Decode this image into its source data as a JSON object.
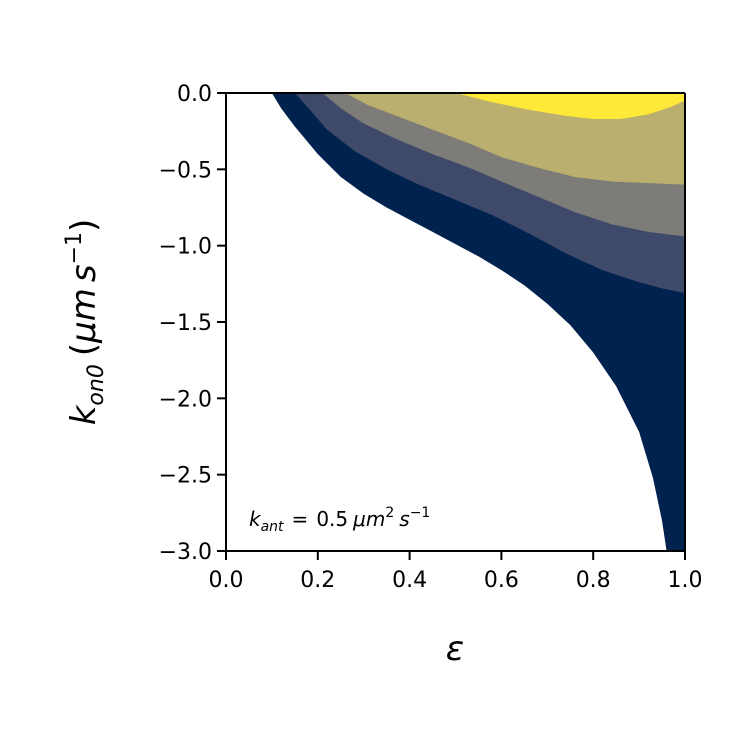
{
  "chart_data": {
    "type": "contourf",
    "title": "",
    "xlabel": "ε",
    "ylabel": {
      "symbol": "k",
      "subscript": "on0",
      "units_open": "(",
      "units_mu": "μm",
      "units_s": "s",
      "units_exp": "−1",
      "units_close": ")"
    },
    "xlim": [
      0.0,
      1.0
    ],
    "ylim": [
      -3.0,
      0.0
    ],
    "xticks": [
      "0.0",
      "0.2",
      "0.4",
      "0.6",
      "0.8",
      "1.0"
    ],
    "xtick_values": [
      0.0,
      0.2,
      0.4,
      0.6,
      0.8,
      1.0
    ],
    "yticks": [
      "0.0",
      "−0.5",
      "−1.0",
      "−1.5",
      "−2.0",
      "−2.5",
      "−3.0"
    ],
    "ytick_values": [
      0.0,
      -0.5,
      -1.0,
      -1.5,
      -2.0,
      -2.5,
      -3.0
    ],
    "annotation": {
      "k": "k",
      "sub": "ant",
      "eq": "=",
      "value": "0.5",
      "unit_mu": "μm",
      "unit_exp1": "2",
      "unit_s": "s",
      "unit_exp2": "−1"
    },
    "colormap": "cividis",
    "levels": [
      {
        "name": "level-1",
        "color": "#00224e",
        "boundary": [
          [
            0.1,
            0.0
          ],
          [
            0.12,
            -0.1
          ],
          [
            0.15,
            -0.22
          ],
          [
            0.2,
            -0.4
          ],
          [
            0.25,
            -0.55
          ],
          [
            0.3,
            -0.66
          ],
          [
            0.35,
            -0.75
          ],
          [
            0.4,
            -0.83
          ],
          [
            0.45,
            -0.91
          ],
          [
            0.5,
            -0.99
          ],
          [
            0.55,
            -1.07
          ],
          [
            0.6,
            -1.16
          ],
          [
            0.65,
            -1.26
          ],
          [
            0.7,
            -1.38
          ],
          [
            0.75,
            -1.52
          ],
          [
            0.8,
            -1.7
          ],
          [
            0.85,
            -1.92
          ],
          [
            0.9,
            -2.22
          ],
          [
            0.93,
            -2.52
          ],
          [
            0.95,
            -2.8
          ],
          [
            0.96,
            -3.0
          ]
        ]
      },
      {
        "name": "level-2",
        "color": "#3f4a6b",
        "boundary": [
          [
            0.15,
            0.0
          ],
          [
            0.18,
            -0.1
          ],
          [
            0.22,
            -0.24
          ],
          [
            0.28,
            -0.38
          ],
          [
            0.35,
            -0.5
          ],
          [
            0.42,
            -0.6
          ],
          [
            0.5,
            -0.7
          ],
          [
            0.58,
            -0.8
          ],
          [
            0.66,
            -0.92
          ],
          [
            0.74,
            -1.05
          ],
          [
            0.82,
            -1.16
          ],
          [
            0.9,
            -1.24
          ],
          [
            0.95,
            -1.28
          ],
          [
            1.0,
            -1.31
          ]
        ]
      },
      {
        "name": "level-3",
        "color": "#7d7c78",
        "boundary": [
          [
            0.21,
            0.0
          ],
          [
            0.25,
            -0.1
          ],
          [
            0.3,
            -0.2
          ],
          [
            0.37,
            -0.3
          ],
          [
            0.45,
            -0.4
          ],
          [
            0.53,
            -0.49
          ],
          [
            0.6,
            -0.58
          ],
          [
            0.68,
            -0.68
          ],
          [
            0.76,
            -0.78
          ],
          [
            0.84,
            -0.86
          ],
          [
            0.92,
            -0.91
          ],
          [
            1.0,
            -0.94
          ]
        ]
      },
      {
        "name": "level-4",
        "color": "#baaf6e",
        "boundary": [
          [
            0.26,
            0.0
          ],
          [
            0.31,
            -0.08
          ],
          [
            0.38,
            -0.16
          ],
          [
            0.45,
            -0.24
          ],
          [
            0.53,
            -0.33
          ],
          [
            0.6,
            -0.42
          ],
          [
            0.68,
            -0.49
          ],
          [
            0.76,
            -0.55
          ],
          [
            0.84,
            -0.58
          ],
          [
            0.92,
            -0.59
          ],
          [
            1.0,
            -0.6
          ]
        ]
      },
      {
        "name": "level-5",
        "color": "#fee838",
        "boundary": [
          [
            0.5,
            0.0
          ],
          [
            0.58,
            -0.06
          ],
          [
            0.66,
            -0.11
          ],
          [
            0.74,
            -0.15
          ],
          [
            0.8,
            -0.17
          ],
          [
            0.86,
            -0.17
          ],
          [
            0.92,
            -0.14
          ],
          [
            0.97,
            -0.09
          ],
          [
            1.0,
            -0.05
          ]
        ]
      }
    ]
  }
}
